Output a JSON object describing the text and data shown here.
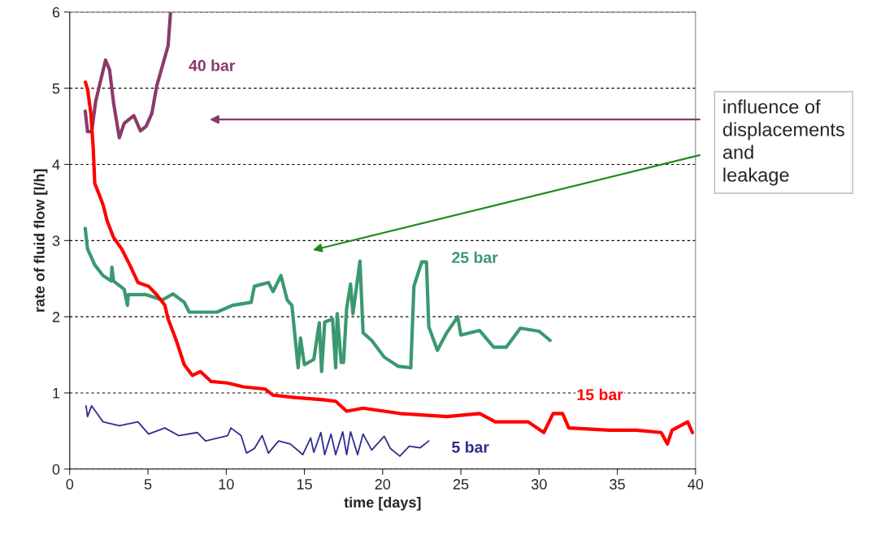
{
  "chart_data": {
    "type": "line",
    "xlabel": "time [days]",
    "ylabel": "rate of fluid flow [l/h]",
    "xlim": [
      0,
      40
    ],
    "xticks": [
      0,
      5,
      10,
      15,
      20,
      25,
      30,
      35,
      40
    ],
    "ylim": [
      0,
      6
    ],
    "yticks": [
      0,
      1,
      2,
      3,
      4,
      5,
      6
    ],
    "grid": "y",
    "line_style": "solid",
    "marker": "none",
    "annotations": [
      "influence of\ndisplacements\nand\nleakage"
    ],
    "series": [
      {
        "name": "40 bar",
        "color": "#8b3a6b",
        "x": [
          0.99,
          1.14,
          1.4,
          1.66,
          2.29,
          2.55,
          2.8,
          3.17,
          3.48,
          4.1,
          4.52,
          4.88,
          5.25,
          5.56,
          5.92,
          6.29,
          6.44
        ],
        "values": [
          4.7,
          4.43,
          4.43,
          4.83,
          5.37,
          5.24,
          4.81,
          4.35,
          4.54,
          4.64,
          4.44,
          4.5,
          4.67,
          5.03,
          5.29,
          5.56,
          5.99
        ]
      },
      {
        "name": "25 bar",
        "color": "#3a9970",
        "x": [
          0.99,
          1.14,
          1.6,
          2.13,
          2.65,
          2.7,
          2.8,
          3.48,
          3.69,
          3.74,
          4.88,
          5.92,
          6.6,
          7.32,
          7.64,
          9.4,
          10.4,
          11.6,
          11.8,
          12.7,
          13.0,
          13.5,
          13.9,
          14.2,
          14.6,
          14.75,
          15.0,
          15.6,
          15.95,
          16.1,
          16.3,
          16.8,
          17.0,
          17.1,
          17.35,
          17.5,
          17.7,
          17.95,
          18.1,
          18.55,
          18.75,
          19.3,
          20.1,
          21.0,
          21.8,
          22.0,
          22.5,
          22.8,
          22.95,
          23.5,
          24.1,
          24.8,
          25.0,
          26.2,
          27.1,
          27.9,
          28.8,
          30.0,
          30.7
        ],
        "values": [
          3.16,
          2.89,
          2.68,
          2.54,
          2.47,
          2.65,
          2.47,
          2.36,
          2.15,
          2.29,
          2.29,
          2.22,
          2.3,
          2.19,
          2.06,
          2.06,
          2.15,
          2.19,
          2.4,
          2.45,
          2.33,
          2.54,
          2.22,
          2.15,
          1.33,
          1.72,
          1.37,
          1.44,
          1.92,
          1.28,
          1.93,
          1.97,
          1.33,
          2.04,
          1.4,
          1.4,
          2.11,
          2.43,
          2.04,
          2.73,
          1.79,
          1.69,
          1.47,
          1.35,
          1.33,
          2.4,
          2.72,
          2.72,
          1.87,
          1.56,
          1.79,
          2.0,
          1.76,
          1.82,
          1.6,
          1.6,
          1.85,
          1.81,
          1.69
        ]
      },
      {
        "name": "15 bar",
        "color": "#ff0000",
        "x": [
          1.0,
          1.14,
          1.35,
          1.5,
          1.6,
          1.87,
          2.13,
          2.39,
          2.8,
          3.32,
          3.84,
          4.36,
          5.04,
          5.56,
          6.08,
          6.29,
          6.81,
          7.32,
          7.84,
          8.36,
          9.04,
          10.08,
          11.1,
          12.5,
          13.0,
          14.4,
          16.2,
          17.0,
          17.7,
          18.75,
          20.1,
          21.1,
          24.1,
          26.2,
          27.2,
          29.3,
          30.3,
          30.9,
          31.5,
          31.9,
          34.5,
          36.2,
          37.8,
          38.2,
          38.5,
          39.5,
          39.8
        ],
        "values": [
          5.08,
          4.99,
          4.67,
          4.22,
          3.75,
          3.61,
          3.47,
          3.26,
          3.04,
          2.89,
          2.68,
          2.45,
          2.4,
          2.29,
          2.15,
          1.97,
          1.69,
          1.37,
          1.23,
          1.28,
          1.15,
          1.13,
          1.08,
          1.05,
          0.97,
          0.94,
          0.91,
          0.89,
          0.76,
          0.8,
          0.76,
          0.73,
          0.69,
          0.73,
          0.62,
          0.62,
          0.48,
          0.73,
          0.73,
          0.54,
          0.51,
          0.51,
          0.48,
          0.33,
          0.51,
          0.62,
          0.48
        ]
      },
      {
        "name": "5 bar",
        "color": "#2e2e8c",
        "x": [
          1.04,
          1.14,
          1.4,
          2.13,
          3.17,
          4.36,
          5.04,
          6.08,
          6.96,
          8.16,
          8.68,
          10.1,
          10.3,
          10.95,
          11.3,
          11.8,
          12.3,
          12.7,
          13.35,
          14.1,
          14.9,
          15.4,
          15.6,
          16.05,
          16.3,
          16.7,
          17.0,
          17.45,
          17.7,
          17.95,
          18.4,
          18.75,
          19.3,
          20.1,
          20.5,
          21.1,
          21.7,
          22.4,
          22.95
        ],
        "values": [
          0.83,
          0.69,
          0.83,
          0.62,
          0.57,
          0.62,
          0.46,
          0.54,
          0.44,
          0.48,
          0.37,
          0.44,
          0.54,
          0.44,
          0.21,
          0.27,
          0.44,
          0.21,
          0.37,
          0.33,
          0.19,
          0.41,
          0.22,
          0.48,
          0.19,
          0.46,
          0.19,
          0.49,
          0.19,
          0.49,
          0.19,
          0.46,
          0.25,
          0.43,
          0.27,
          0.17,
          0.3,
          0.28,
          0.37
        ]
      }
    ]
  }
}
